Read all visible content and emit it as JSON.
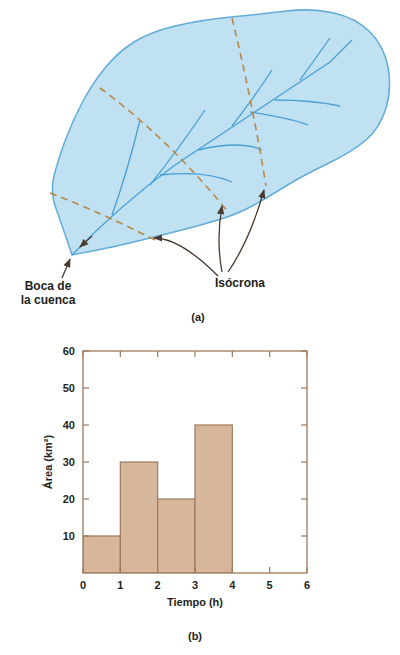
{
  "diagram": {
    "mouth_label": [
      "Boca de",
      "la cuenca"
    ],
    "isochrone_label": "Isócrona",
    "caption": "(a)"
  },
  "chart_data": {
    "type": "histogram",
    "caption": "(b)",
    "x_label": "Tiempo (h)",
    "y_label": "Área (km²)",
    "bins": [
      0,
      1,
      2,
      3,
      4
    ],
    "values": [
      10,
      30,
      20,
      40
    ],
    "color": "#d7b79b",
    "xlim": [
      0,
      6
    ],
    "ylim": [
      0,
      60
    ],
    "xticks": [
      0,
      1,
      2,
      3,
      4,
      5,
      6
    ],
    "yticks": [
      10,
      20,
      30,
      40,
      50,
      60
    ],
    "grid": false
  }
}
